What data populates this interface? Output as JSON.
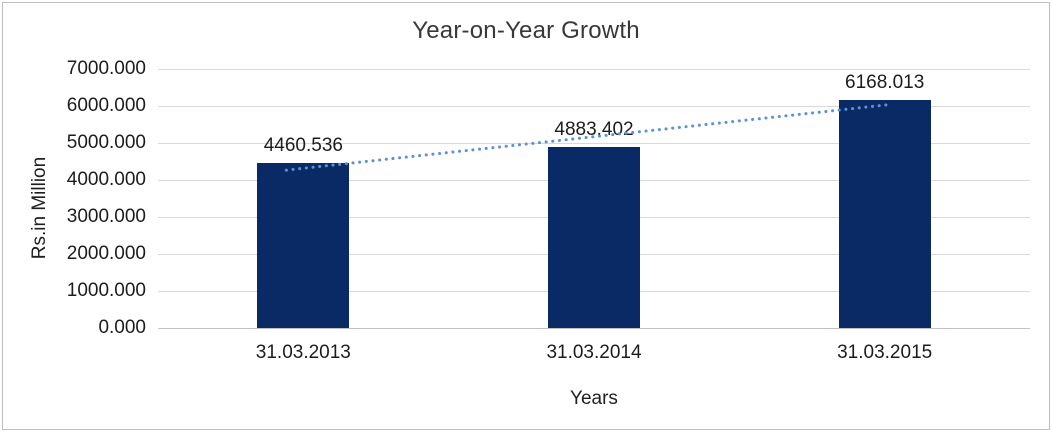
{
  "chart_data": {
    "type": "bar",
    "title": "Year-on-Year Growth",
    "xlabel": "Years",
    "ylabel": "Rs.in Million",
    "categories": [
      "31.03.2013",
      "31.03.2014",
      "31.03.2015"
    ],
    "values": [
      4460.536,
      4883.402,
      6168.013
    ],
    "data_labels": [
      "4460.536",
      "4883.402",
      "6168.013"
    ],
    "y_ticks": [
      {
        "value": 7000,
        "label": "7000.000"
      },
      {
        "value": 6000,
        "label": "6000.000"
      },
      {
        "value": 5000,
        "label": "5000.000"
      },
      {
        "value": 4000,
        "label": "4000.000"
      },
      {
        "value": 3000,
        "label": "3000.000"
      },
      {
        "value": 2000,
        "label": "2000.000"
      },
      {
        "value": 1000,
        "label": "1000.000"
      },
      {
        "value": 0,
        "label": "0.000"
      }
    ],
    "ylim": [
      0,
      7000
    ],
    "grid": true,
    "legend": "none",
    "trendline": {
      "type": "linear",
      "style": "dotted",
      "color": "#5b92d4"
    },
    "colors": {
      "bar": "#0a2a66",
      "gridline": "#d9d9d9",
      "axis_line": "#c3c3c3",
      "border": "#bdbdbd",
      "background": "#ffffff",
      "text": "#1c1c1c"
    }
  }
}
